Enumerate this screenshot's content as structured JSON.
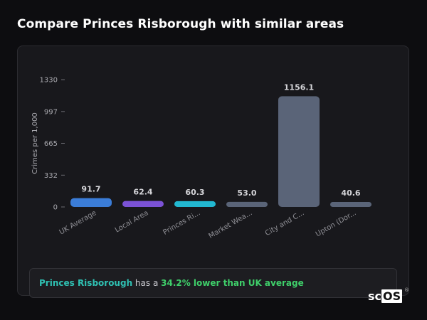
{
  "title": "Compare Princes Risborough with similar areas",
  "chart_data": {
    "type": "bar",
    "ylabel": "Crimes per 1,000",
    "ylim": [
      0,
      1330
    ],
    "yticks": [
      0,
      332,
      665,
      997,
      1330
    ],
    "categories": [
      "UK Average",
      "Local Area",
      "Princes Ri...",
      "Market Wea...",
      "City and C...",
      "Upton (Dor..."
    ],
    "values": [
      91.7,
      62.4,
      60.3,
      53.0,
      1156.1,
      40.6
    ],
    "value_labels": [
      "91.7",
      "62.4",
      "60.3",
      "53.0",
      "1156.1",
      "40.6"
    ],
    "colors": [
      "#3b7dd8",
      "#7b52d6",
      "#22b8d1",
      "#5a6478",
      "#5a6478",
      "#5a6478"
    ],
    "grid": false,
    "legend": "none"
  },
  "summary": {
    "area": "Princes Risborough",
    "middle": " has a ",
    "highlight": "34.2% lower than UK average"
  },
  "logo": {
    "prefix": "sc",
    "boxed": "OS",
    "reg": "®"
  }
}
